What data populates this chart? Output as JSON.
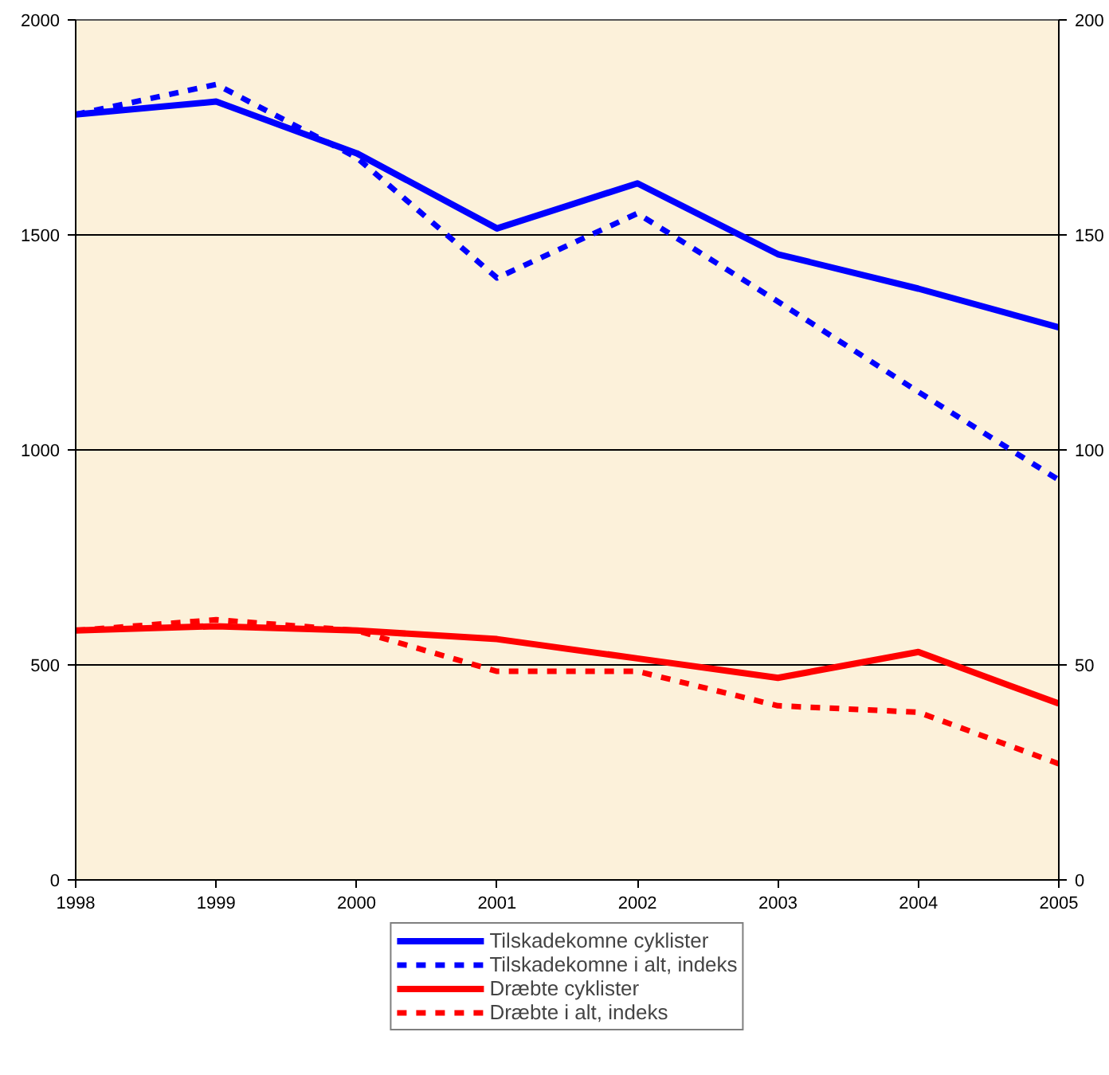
{
  "chart_data": {
    "type": "line",
    "x": [
      1998,
      1999,
      2000,
      2001,
      2002,
      2003,
      2004,
      2005
    ],
    "xlim": [
      1998,
      2005
    ],
    "xticks": [
      1998,
      1999,
      2000,
      2001,
      2002,
      2003,
      2004,
      2005
    ],
    "ylim": [
      0,
      2000
    ],
    "yticks": [
      0,
      500,
      1000,
      1500,
      2000
    ],
    "y2lim": [
      0,
      200
    ],
    "y2ticks": [
      0,
      50,
      100,
      150,
      200
    ],
    "grid": "y",
    "legend": "bottom",
    "marker": "none",
    "series": [
      {
        "name": "Tilskadekomne cyklister",
        "color": "#0000ff",
        "line_style": "solid",
        "values": [
          1780,
          1810,
          1690,
          1515,
          1620,
          1455,
          1375,
          1285
        ]
      },
      {
        "name": "Tilskadekomne i alt, indeks",
        "color": "#0000ff",
        "line_style": "dashed",
        "values": [
          1780,
          1850,
          1680,
          1400,
          1550,
          1345,
          1135,
          930
        ]
      },
      {
        "name": "Dræbte cyklister",
        "color": "#ff0000",
        "line_style": "solid",
        "axis": "y2",
        "values": [
          58,
          59,
          58,
          56,
          51.5,
          47,
          53,
          41
        ]
      },
      {
        "name": "Dræbte i alt, indeks",
        "color": "#ff0000",
        "line_style": "dashed",
        "axis": "y2",
        "values": [
          58,
          60.5,
          58,
          48.5,
          48.5,
          40.5,
          39,
          27
        ]
      }
    ]
  }
}
